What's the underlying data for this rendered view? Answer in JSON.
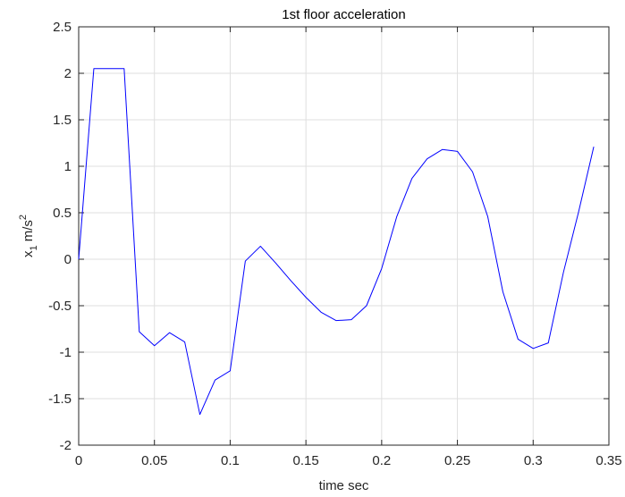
{
  "chart_data": {
    "type": "line",
    "title": "1st floor acceleration",
    "xlabel": "time sec",
    "ylabel": {
      "base": "x",
      "sub": "1",
      "unit": " m/s",
      "sup": "2"
    },
    "xlim": [
      0,
      0.35
    ],
    "ylim": [
      -2,
      2.5
    ],
    "xticks": [
      0,
      0.05,
      0.1,
      0.15,
      0.2,
      0.25,
      0.3,
      0.35
    ],
    "xtick_labels": [
      "0",
      "0.05",
      "0.1",
      "0.15",
      "0.2",
      "0.25",
      "0.3",
      "0.35"
    ],
    "yticks": [
      -2,
      -1.5,
      -1,
      -0.5,
      0,
      0.5,
      1,
      1.5,
      2,
      2.5
    ],
    "ytick_labels": [
      "-2",
      "-1.5",
      "-1",
      "-0.5",
      "0",
      "0.5",
      "1",
      "1.5",
      "2",
      "2.5"
    ],
    "grid": true,
    "series": [
      {
        "color": "#0000ff",
        "x": [
          0,
          0.01,
          0.02,
          0.03,
          0.04,
          0.05,
          0.06,
          0.07,
          0.08,
          0.09,
          0.1,
          0.11,
          0.12,
          0.13,
          0.14,
          0.15,
          0.16,
          0.17,
          0.18,
          0.19,
          0.2,
          0.21,
          0.22,
          0.23,
          0.24,
          0.25,
          0.26,
          0.27,
          0.28,
          0.29,
          0.3,
          0.31,
          0.32,
          0.33,
          0.34
        ],
        "y": [
          0,
          2.05,
          2.05,
          2.05,
          -0.78,
          -0.93,
          -0.79,
          -0.89,
          -1.67,
          -1.3,
          -1.2,
          -0.02,
          0.14,
          -0.04,
          -0.23,
          -0.41,
          -0.57,
          -0.66,
          -0.65,
          -0.5,
          -0.1,
          0.46,
          0.87,
          1.08,
          1.18,
          1.16,
          0.94,
          0.46,
          -0.35,
          -0.86,
          -0.96,
          -0.9,
          -0.14,
          0.51,
          1.21
        ]
      }
    ]
  }
}
